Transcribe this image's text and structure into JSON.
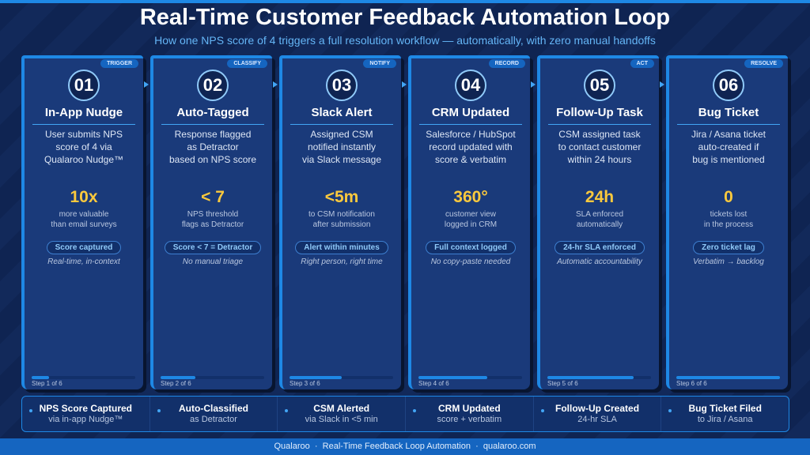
{
  "title": "Real-Time Customer Feedback Automation Loop",
  "subtitle": "How one NPS score of 4 triggers a full resolution workflow — automatically, with zero manual handoffs",
  "cards": [
    {
      "tag": "TRIGGER",
      "num": "01",
      "title": "In-App Nudge",
      "desc": [
        "User submits NPS",
        "score of 4 via",
        "Qualaroo Nudge™"
      ],
      "stat": "10x",
      "stat_label": [
        "more valuable",
        "than email surveys"
      ],
      "pill": "Score captured",
      "note": "Real-time, in-context",
      "step": "Step 1 of 6",
      "progress": 0.167
    },
    {
      "tag": "CLASSIFY",
      "num": "02",
      "title": "Auto-Tagged",
      "desc": [
        "Response flagged",
        "as Detractor",
        "based on NPS score"
      ],
      "stat": "< 7",
      "stat_label": [
        "NPS threshold",
        "flags as Detractor"
      ],
      "pill": "Score < 7 = Detractor",
      "note": "No manual triage",
      "step": "Step 2 of 6",
      "progress": 0.333
    },
    {
      "tag": "NOTIFY",
      "num": "03",
      "title": "Slack Alert",
      "desc": [
        "Assigned CSM",
        "notified instantly",
        "via Slack message"
      ],
      "stat": "<5m",
      "stat_label": [
        "to CSM notification",
        "after submission"
      ],
      "pill": "Alert within minutes",
      "note": "Right person, right time",
      "step": "Step 3 of 6",
      "progress": 0.5
    },
    {
      "tag": "RECORD",
      "num": "04",
      "title": "CRM Updated",
      "desc": [
        "Salesforce / HubSpot",
        "record updated with",
        "score & verbatim"
      ],
      "stat": "360°",
      "stat_label": [
        "customer view",
        "logged in CRM"
      ],
      "pill": "Full context logged",
      "note": "No copy-paste needed",
      "step": "Step 4 of 6",
      "progress": 0.667
    },
    {
      "tag": "ACT",
      "num": "05",
      "title": "Follow-Up Task",
      "desc": [
        "CSM assigned task",
        "to contact customer",
        "within 24 hours"
      ],
      "stat": "24h",
      "stat_label": [
        "SLA enforced",
        "automatically"
      ],
      "pill": "24-hr SLA enforced",
      "note": "Automatic accountability",
      "step": "Step 5 of 6",
      "progress": 0.833
    },
    {
      "tag": "RESOLVE",
      "num": "06",
      "title": "Bug Ticket",
      "desc": [
        "Jira / Asana ticket",
        "auto-created if",
        "bug is mentioned"
      ],
      "stat": "0",
      "stat_label": [
        "tickets lost",
        "in the process"
      ],
      "pill": "Zero ticket lag",
      "note": "Verbatim → backlog",
      "step": "Step 6 of 6",
      "progress": 1.0
    }
  ],
  "summary": [
    {
      "title": "NPS Score Captured",
      "sub": "via in-app Nudge™"
    },
    {
      "title": "Auto-Classified",
      "sub": "as Detractor"
    },
    {
      "title": "CSM Alerted",
      "sub": "via Slack in <5 min"
    },
    {
      "title": "CRM Updated",
      "sub": "score + verbatim"
    },
    {
      "title": "Follow-Up Created",
      "sub": "24-hr SLA"
    },
    {
      "title": "Bug Ticket Filed",
      "sub": "to Jira / Asana"
    }
  ],
  "footer": {
    "brand": "Qualaroo",
    "text": "Real-Time Feedback Loop Automation",
    "url": "qualaroo.com"
  },
  "colors": {
    "accent": "#1e88e5",
    "stat": "#fbc93d",
    "background": "#0f2452"
  }
}
